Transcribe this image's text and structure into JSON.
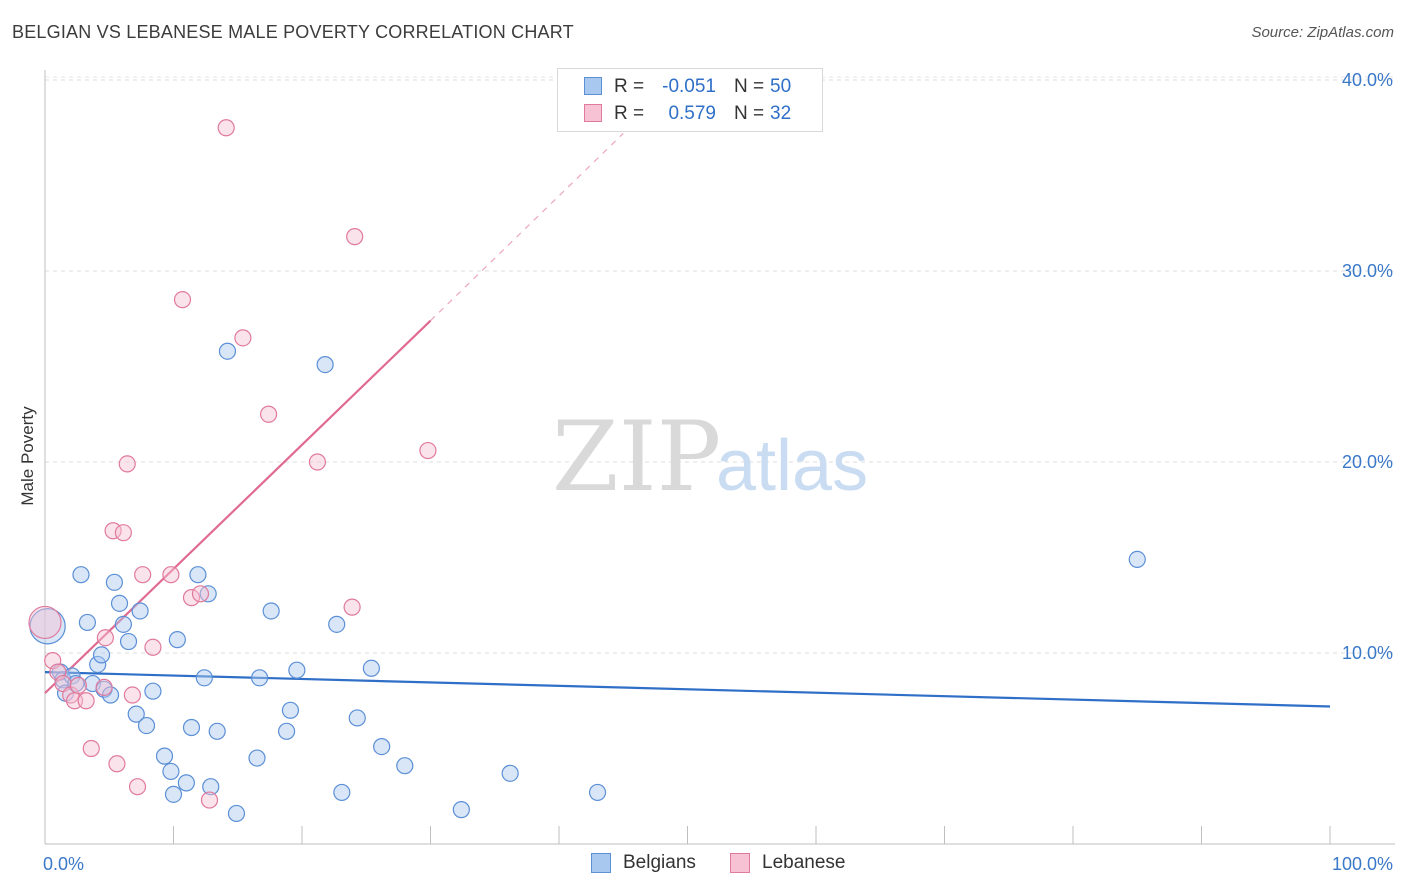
{
  "header": {
    "title": "BELGIAN VS LEBANESE MALE POVERTY CORRELATION CHART",
    "source": "Source: ZipAtlas.com"
  },
  "watermark": {
    "zip": "ZIP",
    "atlas": "atlas"
  },
  "legend": {
    "rows": [
      {
        "r_label": "R =",
        "r_value": "-0.051",
        "n_label": "N =",
        "n_value": "50",
        "color": "#a8c8ef",
        "stroke": "#5b8fd6"
      },
      {
        "r_label": "R =",
        "r_value": "0.579",
        "n_label": "N =",
        "n_value": "32",
        "color": "#f7c2d3",
        "stroke": "#e07a9d"
      }
    ],
    "bottom": [
      {
        "label": "Belgians",
        "color": "#a8c8ef",
        "stroke": "#5b8fd6"
      },
      {
        "label": "Lebanese",
        "color": "#f7c2d3",
        "stroke": "#e07a9d"
      }
    ]
  },
  "chart_data": {
    "type": "scatter",
    "title": "BELGIAN VS LEBANESE MALE POVERTY CORRELATION CHART",
    "xlabel": "",
    "ylabel": "Male Poverty",
    "xlim": [
      0,
      100
    ],
    "ylim": [
      0,
      41
    ],
    "x_tick_labels": [
      {
        "value": 0,
        "label": "0.0%"
      },
      {
        "value": 100,
        "label": "100.0%"
      }
    ],
    "y_tick_labels": [
      {
        "value": 10,
        "label": "10.0%"
      },
      {
        "value": 20,
        "label": "20.0%"
      },
      {
        "value": 30,
        "label": "30.0%"
      },
      {
        "value": 40,
        "label": "40.0%"
      }
    ],
    "x_minor_ticks": [
      10,
      20,
      30,
      40,
      50,
      60,
      70,
      80,
      90,
      100
    ],
    "series": [
      {
        "name": "Belgians",
        "color": "#a8c8ef",
        "stroke": "#5b8fd6",
        "trend": {
          "x": [
            0,
            100
          ],
          "y": [
            9.0,
            7.2
          ],
          "color": "#2f6fc7",
          "dashed_extension": false
        },
        "points": [
          [
            0.2,
            11.4,
            2.2
          ],
          [
            1.2,
            9.0,
            1
          ],
          [
            1.4,
            8.6,
            1
          ],
          [
            1.6,
            7.9,
            1
          ],
          [
            2.1,
            8.8,
            1
          ],
          [
            2.4,
            8.4,
            1
          ],
          [
            2.8,
            14.1,
            1
          ],
          [
            3.3,
            11.6,
            1
          ],
          [
            3.7,
            8.4,
            1
          ],
          [
            4.1,
            9.4,
            1
          ],
          [
            4.4,
            9.9,
            1
          ],
          [
            4.6,
            8.1,
            1
          ],
          [
            5.1,
            7.8,
            1
          ],
          [
            5.4,
            13.7,
            1
          ],
          [
            5.8,
            12.6,
            1
          ],
          [
            6.1,
            11.5,
            1
          ],
          [
            6.5,
            10.6,
            1
          ],
          [
            7.1,
            6.8,
            1
          ],
          [
            7.4,
            12.2,
            1
          ],
          [
            7.9,
            6.2,
            1
          ],
          [
            8.4,
            8.0,
            1
          ],
          [
            9.3,
            4.6,
            1
          ],
          [
            9.8,
            3.8,
            1
          ],
          [
            10.0,
            2.6,
            1
          ],
          [
            10.3,
            10.7,
            1
          ],
          [
            11.0,
            3.2,
            1
          ],
          [
            11.4,
            6.1,
            1
          ],
          [
            11.9,
            14.1,
            1
          ],
          [
            12.4,
            8.7,
            1
          ],
          [
            12.7,
            13.1,
            1
          ],
          [
            12.9,
            3.0,
            1
          ],
          [
            13.4,
            5.9,
            1
          ],
          [
            14.2,
            25.8,
            1
          ],
          [
            14.9,
            1.6,
            1
          ],
          [
            16.5,
            4.5,
            1
          ],
          [
            16.7,
            8.7,
            1
          ],
          [
            17.6,
            12.2,
            1
          ],
          [
            18.8,
            5.9,
            1
          ],
          [
            19.1,
            7.0,
            1
          ],
          [
            19.6,
            9.1,
            1
          ],
          [
            21.8,
            25.1,
            1
          ],
          [
            22.7,
            11.5,
            1
          ],
          [
            23.1,
            2.7,
            1
          ],
          [
            24.3,
            6.6,
            1
          ],
          [
            25.4,
            9.2,
            1
          ],
          [
            26.2,
            5.1,
            1
          ],
          [
            28.0,
            4.1,
            1
          ],
          [
            32.4,
            1.8,
            1
          ],
          [
            36.2,
            3.7,
            1
          ],
          [
            43.0,
            2.7,
            1
          ],
          [
            85.0,
            14.9,
            1
          ]
        ]
      },
      {
        "name": "Lebanese",
        "color": "#f7c2d3",
        "stroke": "#e07a9d",
        "trend": {
          "x": [
            0,
            30
          ],
          "y": [
            7.9,
            27.4
          ],
          "color": "#e06a92",
          "dashed_to": [
            45,
            37.2
          ]
        },
        "points": [
          [
            0.0,
            11.6,
            2.0
          ],
          [
            0.6,
            9.6,
            1
          ],
          [
            1.0,
            9.0,
            1
          ],
          [
            1.4,
            8.4,
            1
          ],
          [
            2.0,
            7.8,
            1
          ],
          [
            2.3,
            7.5,
            1
          ],
          [
            2.6,
            8.3,
            1
          ],
          [
            3.2,
            7.5,
            1
          ],
          [
            3.6,
            5.0,
            1
          ],
          [
            4.6,
            8.2,
            1
          ],
          [
            4.7,
            10.8,
            1
          ],
          [
            5.3,
            16.4,
            1
          ],
          [
            5.6,
            4.2,
            1
          ],
          [
            6.1,
            16.3,
            1
          ],
          [
            6.4,
            19.9,
            1
          ],
          [
            6.8,
            7.8,
            1
          ],
          [
            7.2,
            3.0,
            1
          ],
          [
            7.6,
            14.1,
            1
          ],
          [
            8.4,
            10.3,
            1
          ],
          [
            9.8,
            14.1,
            1
          ],
          [
            10.7,
            28.5,
            1
          ],
          [
            11.4,
            12.9,
            1
          ],
          [
            12.1,
            13.1,
            1
          ],
          [
            12.8,
            2.3,
            1
          ],
          [
            14.1,
            37.5,
            1
          ],
          [
            15.4,
            26.5,
            1
          ],
          [
            17.4,
            22.5,
            1
          ],
          [
            21.2,
            20.0,
            1
          ],
          [
            23.9,
            12.4,
            1
          ],
          [
            24.1,
            31.8,
            1
          ],
          [
            29.8,
            20.6,
            1
          ]
        ]
      }
    ]
  }
}
